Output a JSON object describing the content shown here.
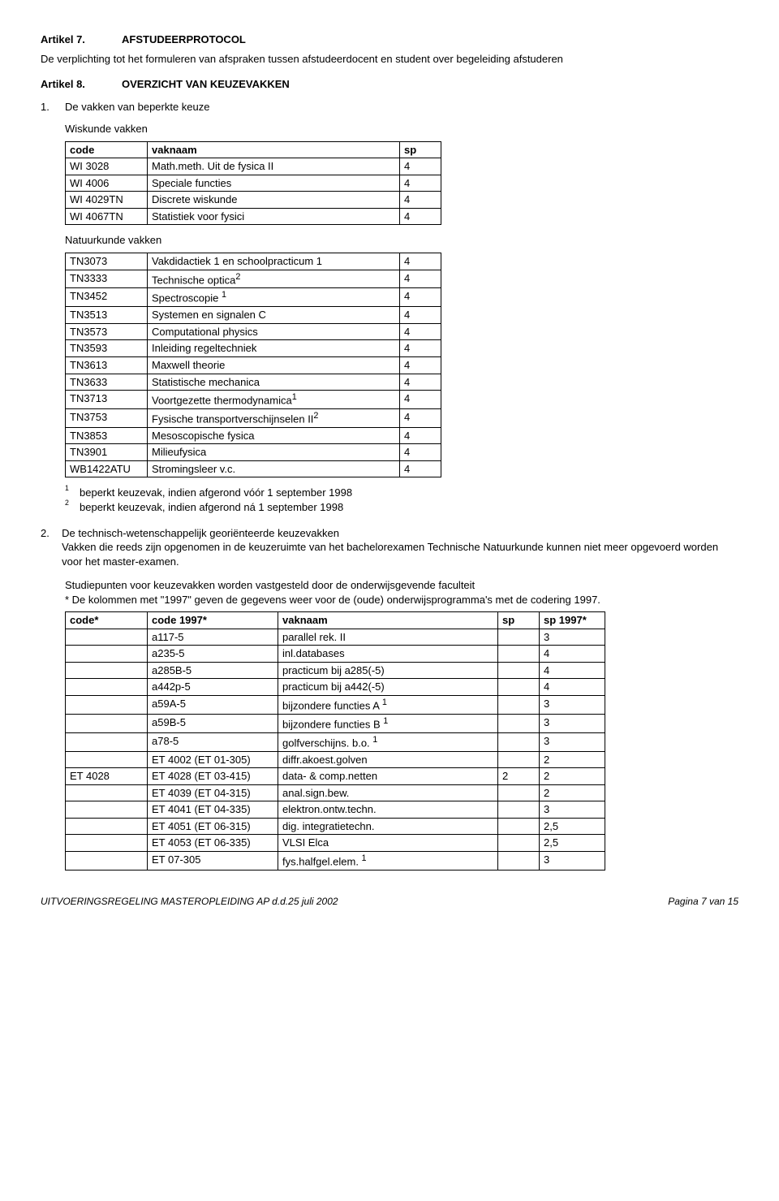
{
  "article7": {
    "label": "Artikel 7.",
    "title": "AFSTUDEERPROTOCOL"
  },
  "article7_text": "De verplichting tot het formuleren van afspraken tussen afstudeerdocent en student over begeleiding afstuderen",
  "article8": {
    "label": "Artikel 8.",
    "title": "OVERZICHT VAN KEUZEVAKKEN"
  },
  "item1": {
    "num": "1.",
    "text": "De vakken van beperkte keuze"
  },
  "wiskunde": {
    "caption": "Wiskunde vakken",
    "headers": {
      "code": "code",
      "name": "vaknaam",
      "sp": "sp"
    },
    "rows": [
      {
        "code": "WI 3028",
        "name": "Math.meth. Uit de fysica II",
        "sp": "4"
      },
      {
        "code": "WI 4006",
        "name": "Speciale functies",
        "sp": "4"
      },
      {
        "code": "WI 4029TN",
        "name": "Discrete wiskunde",
        "sp": "4"
      },
      {
        "code": "WI 4067TN",
        "name": "Statistiek voor fysici",
        "sp": "4"
      }
    ]
  },
  "natuurkunde": {
    "caption": "Natuurkunde vakken",
    "rows": [
      {
        "code": "TN3073",
        "name": "Vakdidactiek 1 en schoolpracticum 1",
        "sup": "",
        "sp": "4"
      },
      {
        "code": "TN3333",
        "name": "Technische optica",
        "sup": "2",
        "sp": "4"
      },
      {
        "code": "TN3452",
        "name": "Spectroscopie ",
        "sup": "1",
        "sp": "4"
      },
      {
        "code": "TN3513",
        "name": "Systemen en signalen C",
        "sup": "",
        "sp": "4"
      },
      {
        "code": "TN3573",
        "name": "Computational physics",
        "sup": "",
        "sp": "4"
      },
      {
        "code": "TN3593",
        "name": "Inleiding regeltechniek",
        "sup": "",
        "sp": "4"
      },
      {
        "code": "TN3613",
        "name": "Maxwell theorie",
        "sup": "",
        "sp": "4"
      },
      {
        "code": "TN3633",
        "name": "Statistische mechanica",
        "sup": "",
        "sp": "4"
      },
      {
        "code": "TN3713",
        "name": "Voortgezette thermodynamica",
        "sup": "1",
        "sp": "4"
      },
      {
        "code": "TN3753",
        "name": "Fysische transportverschijnselen II",
        "sup": "2",
        "sp": "4"
      },
      {
        "code": "TN3853",
        "name": "Mesoscopische fysica",
        "sup": "",
        "sp": "4"
      },
      {
        "code": "TN3901",
        "name": "Milieufysica",
        "sup": "",
        "sp": "4"
      },
      {
        "code": "WB1422ATU",
        "name": "Stromingsleer v.c.",
        "sup": "",
        "sp": "4"
      }
    ]
  },
  "footnotes": {
    "f1": {
      "num": "1",
      "text": "beperkt keuzevak, indien afgerond vóór 1 september 1998"
    },
    "f2": {
      "num": "2",
      "text": "beperkt keuzevak, indien afgerond ná 1 september 1998"
    }
  },
  "item2": {
    "num": "2.",
    "text": "De technisch-wetenschappelijk georiënteerde keuzevakken",
    "para": "Vakken die reeds zijn opgenomen in de keuzeruimte van het bachelorexamen Technische Natuurkunde kunnen niet meer opgevoerd worden voor het master-examen."
  },
  "studiepunten_intro": "Studiepunten voor keuzevakken worden vastgesteld door de onderwijsgevende faculteit",
  "studiepunten_note": "* De kolommen met \"1997\" geven de gegevens weer voor de (oude) onderwijsprogramma's met de codering 1997.",
  "big_table": {
    "headers": {
      "code": "code*",
      "code1997": "code 1997*",
      "name": "vaknaam",
      "sp": "sp",
      "sp1997": "sp 1997*"
    },
    "rows": [
      {
        "code": "",
        "code1997": "a117-5",
        "name": "parallel rek. II",
        "sup": "",
        "sp": "",
        "sp1997": "3"
      },
      {
        "code": "",
        "code1997": "a235-5",
        "name": "inl.databases",
        "sup": "",
        "sp": "",
        "sp1997": "4"
      },
      {
        "code": "",
        "code1997": "a285B-5",
        "name": "practicum bij a285(-5)",
        "sup": "",
        "sp": "",
        "sp1997": "4"
      },
      {
        "code": "",
        "code1997": "a442p-5",
        "name": "practicum bij a442(-5)",
        "sup": "",
        "sp": "",
        "sp1997": "4"
      },
      {
        "code": "",
        "code1997": "a59A-5",
        "name": "bijzondere functies A ",
        "sup": "1",
        "sp": "",
        "sp1997": "3"
      },
      {
        "code": "",
        "code1997": "a59B-5",
        "name": "bijzondere functies B ",
        "sup": "1",
        "sp": "",
        "sp1997": "3"
      },
      {
        "code": "",
        "code1997": "a78-5",
        "name": "golfverschijns. b.o. ",
        "sup": "1",
        "sp": "",
        "sp1997": "3"
      },
      {
        "code": "",
        "code1997": "ET 4002 (ET 01-305)",
        "name": "diffr.akoest.golven",
        "sup": "",
        "sp": "",
        "sp1997": "2"
      },
      {
        "code": "ET 4028",
        "code1997": "ET 4028 (ET 03-415)",
        "name": "data- & comp.netten",
        "sup": "",
        "sp": "2",
        "sp1997": "2"
      },
      {
        "code": "",
        "code1997": "ET 4039 (ET 04-315)",
        "name": "anal.sign.bew.",
        "sup": "",
        "sp": "",
        "sp1997": "2"
      },
      {
        "code": "",
        "code1997": "ET 4041 (ET 04-335)",
        "name": "elektron.ontw.techn.",
        "sup": "",
        "sp": "",
        "sp1997": "3"
      },
      {
        "code": "",
        "code1997": "ET 4051 (ET 06-315)",
        "name": "dig. integratietechn.",
        "sup": "",
        "sp": "",
        "sp1997": "2,5"
      },
      {
        "code": "",
        "code1997": "ET 4053 (ET 06-335)",
        "name": "VLSI Elca",
        "sup": "",
        "sp": "",
        "sp1997": "2,5"
      },
      {
        "code": "",
        "code1997": "ET 07-305",
        "name": "fys.halfgel.elem. ",
        "sup": "1",
        "sp": "",
        "sp1997": "3"
      }
    ]
  },
  "footer": {
    "left": "UITVOERINGSREGELING MASTEROPLEIDING AP d.d.25 juli 2002",
    "right": "Pagina 7 van 15"
  }
}
